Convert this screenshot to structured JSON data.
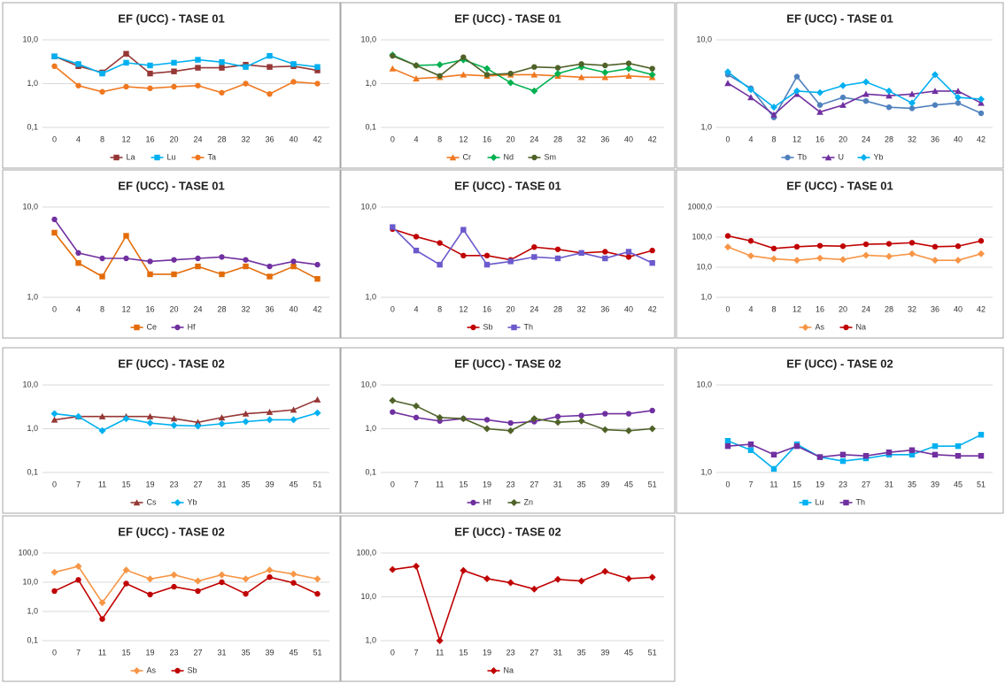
{
  "chart_data": [
    {
      "type": "line",
      "title": "EF (UCC) - TASE 01",
      "log_scale": true,
      "grid": true,
      "legend": "bottom",
      "categories": [
        "0",
        "4",
        "8",
        "12",
        "16",
        "20",
        "24",
        "28",
        "32",
        "36",
        "40",
        "42"
      ],
      "ylim": [
        0.1,
        10
      ],
      "yticks": [
        {
          "value": 0.1,
          "label": "0,1"
        },
        {
          "value": 1,
          "label": "1,0"
        },
        {
          "value": 10,
          "label": "10,0"
        }
      ],
      "series": [
        {
          "name": "La",
          "color": "#953735",
          "marker": "square",
          "values": [
            4.2,
            2.5,
            1.8,
            4.8,
            1.7,
            1.9,
            2.3,
            2.3,
            2.7,
            2.4,
            2.5,
            2.0
          ]
        },
        {
          "name": "Lu",
          "color": "#00b0f0",
          "marker": "square",
          "values": [
            4.2,
            2.8,
            1.7,
            3.0,
            2.6,
            3.0,
            3.5,
            3.1,
            2.4,
            4.3,
            2.8,
            2.4
          ]
        },
        {
          "name": "Ta",
          "color": "#f07820",
          "marker": "circle",
          "values": [
            2.5,
            0.9,
            0.65,
            0.85,
            0.78,
            0.85,
            0.9,
            0.62,
            1.0,
            0.58,
            1.1,
            1.0
          ]
        }
      ]
    },
    {
      "type": "line",
      "title": "EF (UCC) - TASE 01",
      "log_scale": true,
      "grid": true,
      "legend": "bottom",
      "categories": [
        "0",
        "4",
        "8",
        "12",
        "16",
        "20",
        "24",
        "28",
        "32",
        "36",
        "40",
        "42"
      ],
      "ylim": [
        0.1,
        10
      ],
      "yticks": [
        {
          "value": 0.1,
          "label": "0,1"
        },
        {
          "value": 1,
          "label": "1,0"
        },
        {
          "value": 10,
          "label": "10,0"
        }
      ],
      "series": [
        {
          "name": "Cr",
          "color": "#f07820",
          "marker": "triangle",
          "values": [
            2.2,
            1.3,
            1.4,
            1.6,
            1.5,
            1.6,
            1.6,
            1.5,
            1.4,
            1.4,
            1.5,
            1.4
          ]
        },
        {
          "name": "Nd",
          "color": "#00b050",
          "marker": "diamond",
          "values": [
            4.5,
            2.6,
            2.7,
            3.5,
            2.2,
            1.05,
            0.68,
            1.7,
            2.4,
            1.8,
            2.2,
            1.6
          ]
        },
        {
          "name": "Sm",
          "color": "#4f6228",
          "marker": "circle",
          "values": [
            4.3,
            2.6,
            1.5,
            4.0,
            1.6,
            1.7,
            2.4,
            2.3,
            2.8,
            2.6,
            2.9,
            2.2
          ]
        }
      ]
    },
    {
      "type": "line",
      "title": "EF (UCC) - TASE 01",
      "log_scale": true,
      "grid": true,
      "legend": "bottom",
      "categories": [
        "0",
        "4",
        "8",
        "12",
        "16",
        "20",
        "24",
        "28",
        "32",
        "36",
        "40",
        "42"
      ],
      "ylim": [
        1,
        10
      ],
      "yticks": [
        {
          "value": 1,
          "label": "1,0"
        },
        {
          "value": 10,
          "label": "10,0"
        }
      ],
      "series": [
        {
          "name": "Tb",
          "color": "#4f81bd",
          "marker": "circle",
          "values": [
            4.0,
            2.8,
            1.3,
            3.8,
            1.8,
            2.2,
            2.0,
            1.7,
            1.65,
            1.8,
            1.9,
            1.45
          ]
        },
        {
          "name": "U",
          "color": "#7030a0",
          "marker": "triangle",
          "values": [
            3.2,
            2.2,
            1.4,
            2.4,
            1.5,
            1.8,
            2.4,
            2.3,
            2.4,
            2.6,
            2.6,
            1.9
          ]
        },
        {
          "name": "Yb",
          "color": "#00b0f0",
          "marker": "diamond",
          "values": [
            4.3,
            2.7,
            1.7,
            2.6,
            2.5,
            3.0,
            3.3,
            2.6,
            1.9,
            4.0,
            2.2,
            2.1
          ]
        }
      ]
    },
    {
      "type": "line",
      "title": "EF (UCC) - TASE 01",
      "log_scale": true,
      "grid": true,
      "legend": "bottom",
      "categories": [
        "0",
        "4",
        "8",
        "12",
        "16",
        "20",
        "24",
        "28",
        "32",
        "36",
        "40",
        "42"
      ],
      "ylim": [
        1,
        10
      ],
      "yticks": [
        {
          "value": 1,
          "label": "1,0"
        },
        {
          "value": 10,
          "label": "10,0"
        }
      ],
      "series": [
        {
          "name": "Ce",
          "color": "#e36c09",
          "marker": "square",
          "values": [
            5.2,
            2.4,
            1.7,
            4.8,
            1.8,
            1.8,
            2.2,
            1.8,
            2.2,
            1.7,
            2.2,
            1.6
          ]
        },
        {
          "name": "Hf",
          "color": "#7030a0",
          "marker": "circle",
          "values": [
            7.3,
            3.1,
            2.7,
            2.7,
            2.5,
            2.6,
            2.7,
            2.8,
            2.6,
            2.2,
            2.5,
            2.3
          ]
        }
      ]
    },
    {
      "type": "line",
      "title": "EF (UCC) - TASE 01",
      "log_scale": true,
      "grid": true,
      "legend": "bottom",
      "categories": [
        "0",
        "4",
        "8",
        "12",
        "16",
        "20",
        "24",
        "28",
        "32",
        "36",
        "40",
        "42"
      ],
      "ylim": [
        1,
        10
      ],
      "yticks": [
        {
          "value": 1,
          "label": "1,0"
        },
        {
          "value": 10,
          "label": "10,0"
        }
      ],
      "series": [
        {
          "name": "Sb",
          "color": "#c00000",
          "marker": "circle",
          "values": [
            5.7,
            4.7,
            4.0,
            2.9,
            2.9,
            2.6,
            3.6,
            3.4,
            3.1,
            3.2,
            2.8,
            3.3
          ]
        },
        {
          "name": "Th",
          "color": "#6a5acd",
          "marker": "square",
          "values": [
            6.0,
            3.3,
            2.3,
            5.6,
            2.3,
            2.5,
            2.8,
            2.7,
            3.1,
            2.7,
            3.2,
            2.4
          ]
        }
      ]
    },
    {
      "type": "line",
      "title": "EF (UCC) - TASE 01",
      "log_scale": true,
      "grid": true,
      "legend": "bottom",
      "categories": [
        "0",
        "4",
        "8",
        "12",
        "16",
        "20",
        "24",
        "28",
        "32",
        "36",
        "40",
        "42"
      ],
      "ylim": [
        1,
        1000
      ],
      "yticks": [
        {
          "value": 1,
          "label": "1,0"
        },
        {
          "value": 10,
          "label": "10,0"
        },
        {
          "value": 100,
          "label": "100,0"
        },
        {
          "value": 1000,
          "label": "1000,0"
        }
      ],
      "series": [
        {
          "name": "As",
          "color": "#f79646",
          "marker": "diamond",
          "values": [
            47,
            24,
            19,
            17,
            20,
            18,
            25,
            23,
            28,
            17,
            17,
            28
          ]
        },
        {
          "name": "Na",
          "color": "#c00000",
          "marker": "circle",
          "values": [
            110,
            75,
            42,
            48,
            52,
            50,
            58,
            60,
            65,
            48,
            50,
            75
          ]
        }
      ]
    },
    {
      "type": "line",
      "title": "EF (UCC) - TASE 02",
      "log_scale": true,
      "grid": true,
      "legend": "bottom",
      "categories": [
        "0",
        "7",
        "11",
        "15",
        "19",
        "23",
        "27",
        "31",
        "35",
        "39",
        "45",
        "51"
      ],
      "ylim": [
        0.1,
        10
      ],
      "yticks": [
        {
          "value": 0.1,
          "label": "0,1"
        },
        {
          "value": 1,
          "label": "1,0"
        },
        {
          "value": 10,
          "label": "10,0"
        }
      ],
      "series": [
        {
          "name": "Cs",
          "color": "#953735",
          "marker": "triangle",
          "values": [
            1.6,
            1.9,
            1.9,
            1.9,
            1.9,
            1.7,
            1.4,
            1.8,
            2.2,
            2.4,
            2.7,
            4.6
          ]
        },
        {
          "name": "Yb",
          "color": "#00b0f0",
          "marker": "diamond",
          "values": [
            2.2,
            1.9,
            0.9,
            1.7,
            1.35,
            1.2,
            1.15,
            1.3,
            1.45,
            1.6,
            1.6,
            2.3
          ]
        }
      ]
    },
    {
      "type": "line",
      "title": "EF (UCC) - TASE 02",
      "log_scale": true,
      "grid": true,
      "legend": "bottom",
      "categories": [
        "0",
        "7",
        "11",
        "15",
        "19",
        "23",
        "27",
        "31",
        "35",
        "39",
        "45",
        "51"
      ],
      "ylim": [
        0.1,
        10
      ],
      "yticks": [
        {
          "value": 0.1,
          "label": "0,1"
        },
        {
          "value": 1,
          "label": "1,0"
        },
        {
          "value": 10,
          "label": "10,0"
        }
      ],
      "series": [
        {
          "name": "Hf",
          "color": "#7030a0",
          "marker": "circle",
          "values": [
            2.4,
            1.8,
            1.5,
            1.7,
            1.6,
            1.35,
            1.45,
            1.9,
            2.0,
            2.2,
            2.2,
            2.6
          ]
        },
        {
          "name": "Zn",
          "color": "#4f6228",
          "marker": "diamond",
          "values": [
            4.4,
            3.3,
            1.8,
            1.7,
            1.0,
            0.9,
            1.7,
            1.4,
            1.5,
            0.95,
            0.9,
            1.0
          ]
        }
      ]
    },
    {
      "type": "line",
      "title": "EF (UCC) - TASE 02",
      "log_scale": true,
      "grid": true,
      "legend": "bottom",
      "categories": [
        "0",
        "7",
        "11",
        "15",
        "19",
        "23",
        "27",
        "31",
        "35",
        "39",
        "45",
        "51"
      ],
      "ylim": [
        1,
        10
      ],
      "yticks": [
        {
          "value": 1,
          "label": "1,0"
        },
        {
          "value": 10,
          "label": "10,0"
        }
      ],
      "series": [
        {
          "name": "Lu",
          "color": "#00b0f0",
          "marker": "square",
          "values": [
            2.3,
            1.8,
            1.1,
            2.1,
            1.5,
            1.35,
            1.45,
            1.6,
            1.6,
            2.0,
            2.0,
            2.7
          ]
        },
        {
          "name": "Th",
          "color": "#7030a0",
          "marker": "square",
          "values": [
            2.0,
            2.1,
            1.6,
            2.0,
            1.5,
            1.6,
            1.55,
            1.7,
            1.8,
            1.6,
            1.55,
            1.55
          ]
        }
      ]
    },
    {
      "type": "line",
      "title": "EF (UCC) - TASE 02",
      "log_scale": true,
      "grid": true,
      "legend": "bottom",
      "categories": [
        "0",
        "7",
        "11",
        "15",
        "19",
        "23",
        "27",
        "31",
        "35",
        "39",
        "45",
        "51"
      ],
      "ylim": [
        0.1,
        100
      ],
      "yticks": [
        {
          "value": 0.1,
          "label": "0,1"
        },
        {
          "value": 1,
          "label": "1,0"
        },
        {
          "value": 10,
          "label": "10,0"
        },
        {
          "value": 100,
          "label": "100,0"
        }
      ],
      "series": [
        {
          "name": "As",
          "color": "#f79646",
          "marker": "diamond",
          "values": [
            22,
            35,
            2.0,
            26,
            13,
            18,
            11,
            18,
            13,
            26,
            19,
            13
          ]
        },
        {
          "name": "Sb",
          "color": "#c00000",
          "marker": "circle",
          "values": [
            5,
            12,
            0.55,
            9,
            3.8,
            7,
            5,
            10,
            4,
            15,
            9.5,
            4
          ]
        }
      ]
    },
    {
      "type": "line",
      "title": "EF (UCC) - TASE 02",
      "log_scale": true,
      "grid": true,
      "legend": "bottom",
      "categories": [
        "0",
        "7",
        "11",
        "15",
        "19",
        "23",
        "27",
        "31",
        "35",
        "39",
        "45",
        "51"
      ],
      "ylim": [
        1,
        100
      ],
      "yticks": [
        {
          "value": 1,
          "label": "1,0"
        },
        {
          "value": 10,
          "label": "10,0"
        },
        {
          "value": 100,
          "label": "100,0"
        }
      ],
      "series": [
        {
          "name": "Na",
          "color": "#c00000",
          "marker": "diamond",
          "values": [
            42,
            50,
            1.0,
            40,
            26,
            21,
            15,
            25,
            23,
            38,
            26,
            28
          ]
        }
      ]
    }
  ]
}
